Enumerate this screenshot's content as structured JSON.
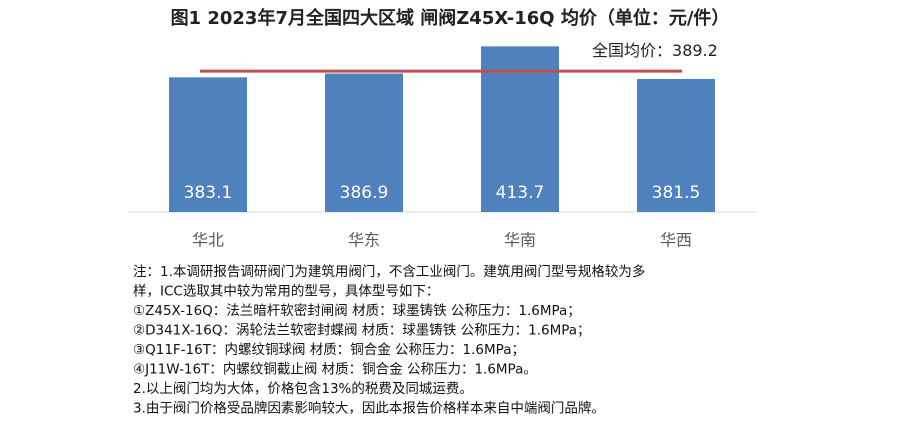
{
  "chart_data": {
    "type": "bar",
    "title": "图1 2023年7月全国四大区域 闸阀Z45X-16Q 均价（单位：元/件）",
    "categories": [
      "华北",
      "华东",
      "华南",
      "华西"
    ],
    "values": [
      383.1,
      386.9,
      413.7,
      381.5
    ],
    "color": "#4f81bd",
    "ylim": [
      250,
      420
    ],
    "average": {
      "label": "全国均价：",
      "value": 389.2,
      "color": "#c0504d"
    }
  },
  "notes": [
    "注：1.本调研报告调研阀门为建筑用阀门，不含工业阀门。建筑用阀门型号规格较为多",
    "样，ICC选取其中较为常用的型号，具体型号如下：",
    "①Z45X-16Q：法兰暗杆软密封闸阀 材质：球墨铸铁 公称压力：1.6MPa；",
    "②D341X-16Q：涡轮法兰软密封蝶阀 材质：球墨铸铁 公称压力：1.6MPa；",
    "③Q11F-16T：内螺纹铜球阀 材质：铜合金 公称压力：1.6MPa；",
    "④J11W-16T：内螺纹铜截止阀 材质：铜合金 公称压力：1.6MPa。",
    "2.以上阀门均为大体，价格包含13%的税费及同城运费。",
    "3.由于阀门价格受品牌因素影响较大，因此本报告价格样本来自中端阀门品牌。"
  ]
}
